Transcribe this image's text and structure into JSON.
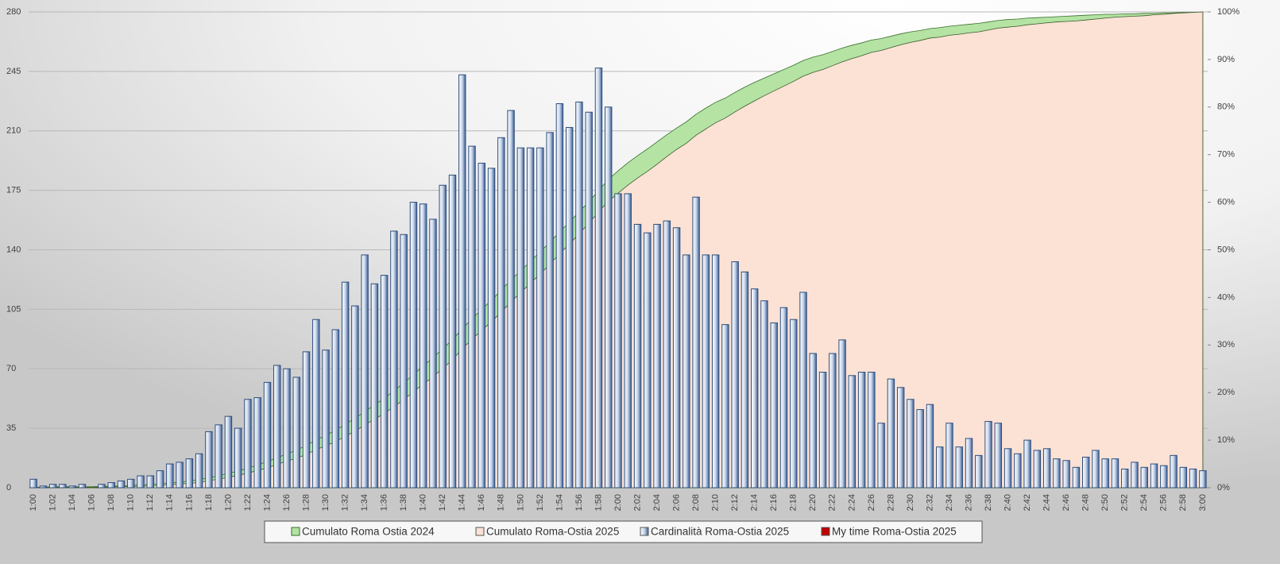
{
  "chart_data": {
    "type": "bar",
    "categories": [
      "1:00",
      null,
      "1:02",
      null,
      "1:04",
      null,
      "1:06",
      null,
      "1:08",
      null,
      "1:10",
      null,
      "1:12",
      null,
      "1:14",
      null,
      "1:16",
      null,
      "1:18",
      null,
      "1:20",
      null,
      "1:22",
      null,
      "1:24",
      null,
      "1:26",
      null,
      "1:28",
      null,
      "1:30",
      null,
      "1:32",
      null,
      "1:34",
      null,
      "1:36",
      null,
      "1:38",
      null,
      "1:40",
      null,
      "1:42",
      null,
      "1:44",
      null,
      "1:46",
      null,
      "1:48",
      null,
      "1:50",
      null,
      "1:52",
      null,
      "1:54",
      null,
      "1:56",
      null,
      "1:58",
      null,
      "2:00",
      null,
      "2:02",
      null,
      "2:04",
      null,
      "2:06",
      null,
      "2:08",
      null,
      "2:10",
      null,
      "2:12",
      null,
      "2:14",
      null,
      "2:16",
      null,
      "2:18",
      null,
      "2:20",
      null,
      "2:22",
      null,
      "2:24",
      null,
      "2:26",
      null,
      "2:28",
      null,
      "2:30",
      null,
      "2:32",
      null,
      "2:34",
      null,
      "2:36",
      null,
      "2:38",
      null,
      "2:40",
      null,
      "2:42",
      null,
      "2:44",
      null,
      "2:46",
      null,
      "2:48",
      null,
      "2:50",
      null,
      "2:52",
      null,
      "2:54",
      null,
      "2:56",
      null,
      "2:58",
      null,
      "3:00"
    ],
    "series": [
      {
        "name": "Cumulato Roma Ostia 2024",
        "color": "#b4e3a4",
        "type": "area",
        "axis": "y2",
        "values": [
          0.1,
          0.1,
          0.2,
          0.2,
          0.2,
          0.2,
          0.2,
          0.3,
          0.3,
          0.4,
          0.5,
          0.6,
          0.7,
          0.8,
          1.0,
          1.2,
          1.4,
          1.7,
          2.1,
          2.5,
          3.0,
          3.5,
          4.1,
          4.8,
          5.5,
          6.3,
          7.1,
          7.9,
          8.9,
          10.0,
          11.0,
          12.1,
          13.3,
          14.6,
          16.0,
          17.4,
          18.8,
          20.4,
          22.0,
          23.8,
          25.6,
          27.3,
          29.2,
          31.1,
          33.4,
          35.5,
          37.5,
          39.4,
          41.5,
          43.7,
          45.6,
          47.6,
          49.6,
          51.6,
          53.8,
          55.8,
          58.0,
          60.1,
          62.5,
          64.8,
          66.6,
          68.3,
          69.8,
          71.2,
          72.7,
          74.2,
          75.6,
          76.9,
          78.5,
          79.8,
          81.0,
          81.9,
          83.1,
          84.2,
          85.2,
          86.1,
          87.0,
          87.9,
          88.8,
          89.8,
          90.5,
          91.0,
          91.7,
          92.4,
          93.0,
          93.5,
          94.1,
          94.4,
          94.9,
          95.4,
          95.8,
          96.1,
          96.5,
          96.7,
          97.0,
          97.2,
          97.4,
          97.6,
          97.9,
          98.2,
          98.4,
          98.5,
          98.7,
          98.8,
          98.9,
          99.0,
          99.1,
          99.2,
          99.3,
          99.4,
          99.5,
          99.5,
          99.6,
          99.6,
          99.7,
          99.7,
          99.8,
          99.8,
          99.9,
          99.9,
          100
        ]
      },
      {
        "name": "Cumulato Roma-Ostia 2025",
        "color": "#fbe2d5",
        "type": "area",
        "axis": "y2",
        "values": [
          0.0,
          0.1,
          0.1,
          0.1,
          0.1,
          0.1,
          0.1,
          0.1,
          0.2,
          0.2,
          0.3,
          0.3,
          0.4,
          0.5,
          0.6,
          0.8,
          0.9,
          1.1,
          1.5,
          1.8,
          2.2,
          2.6,
          3.1,
          3.6,
          4.2,
          4.9,
          5.6,
          6.2,
          7.0,
          8.0,
          8.8,
          9.7,
          10.8,
          11.9,
          13.2,
          14.4,
          15.6,
          17.1,
          18.5,
          20.2,
          21.8,
          23.3,
          25.1,
          26.9,
          29.2,
          31.2,
          33.1,
          34.9,
          36.9,
          39.1,
          41.0,
          43.0,
          44.9,
          47.0,
          49.2,
          51.2,
          53.4,
          55.6,
          58.0,
          60.2,
          61.9,
          63.6,
          65.1,
          66.5,
          68.0,
          69.6,
          71.1,
          72.4,
          74.1,
          75.4,
          76.7,
          77.7,
          79.0,
          80.2,
          81.3,
          82.4,
          83.4,
          84.4,
          85.4,
          86.5,
          87.3,
          87.9,
          88.7,
          89.5,
          90.2,
          90.8,
          91.5,
          91.9,
          92.5,
          93.1,
          93.6,
          94.0,
          94.5,
          94.7,
          95.1,
          95.3,
          95.6,
          95.8,
          96.2,
          96.6,
          96.8,
          97.0,
          97.3,
          97.5,
          97.7,
          97.9,
          98.0,
          98.1,
          98.3,
          98.5,
          98.7,
          98.9,
          99.0,
          99.1,
          99.2,
          99.4,
          99.5,
          99.7,
          99.8,
          99.9,
          100
        ]
      },
      {
        "name": "Cardinalità Roma-Ostia 2025",
        "color": "#2e4d7b",
        "type": "bar",
        "values": [
          5,
          1,
          2,
          2,
          1,
          2,
          0,
          2,
          3,
          4,
          5,
          7,
          7,
          10,
          14,
          15,
          17,
          20,
          33,
          37,
          42,
          35,
          52,
          53,
          62,
          72,
          70,
          65,
          80,
          99,
          81,
          93,
          121,
          107,
          137,
          120,
          125,
          151,
          149,
          168,
          167,
          158,
          178,
          184,
          243,
          201,
          191,
          188,
          206,
          222,
          200,
          200,
          200,
          209,
          226,
          212,
          227,
          221,
          247,
          224,
          173,
          173,
          155,
          150,
          155,
          157,
          153,
          137,
          171,
          137,
          137,
          96,
          133,
          127,
          117,
          110,
          97,
          106,
          99,
          115,
          79,
          68,
          79,
          87,
          66,
          68,
          68,
          38,
          64,
          59,
          52,
          46,
          49,
          24,
          38,
          24,
          29,
          19,
          39,
          38,
          23,
          20,
          28,
          22,
          23,
          17,
          16,
          12,
          18,
          22,
          17,
          17,
          11,
          15,
          12,
          14,
          13,
          19,
          12,
          11,
          10
        ]
      },
      {
        "name": "My time Roma-Ostia 2025",
        "color": "#c00000"
      }
    ],
    "ylim": [
      0,
      280
    ],
    "yticks": [
      0,
      35,
      70,
      105,
      140,
      175,
      210,
      245,
      280
    ],
    "y2lim": [
      0,
      100
    ],
    "y2ticks": [
      {
        "value": 0,
        "label": "0%"
      },
      {
        "value": 10,
        "label": "10%"
      },
      {
        "value": 20,
        "label": "20%"
      },
      {
        "value": 30,
        "label": "30%"
      },
      {
        "value": 40,
        "label": "40%"
      },
      {
        "value": 50,
        "label": "50%"
      },
      {
        "value": 60,
        "label": "60%"
      },
      {
        "value": 70,
        "label": "70%"
      },
      {
        "value": 80,
        "label": "80%"
      },
      {
        "value": 90,
        "label": "90%"
      },
      {
        "value": 100,
        "label": "100%"
      }
    ],
    "grid": true,
    "legend": "bottom"
  }
}
